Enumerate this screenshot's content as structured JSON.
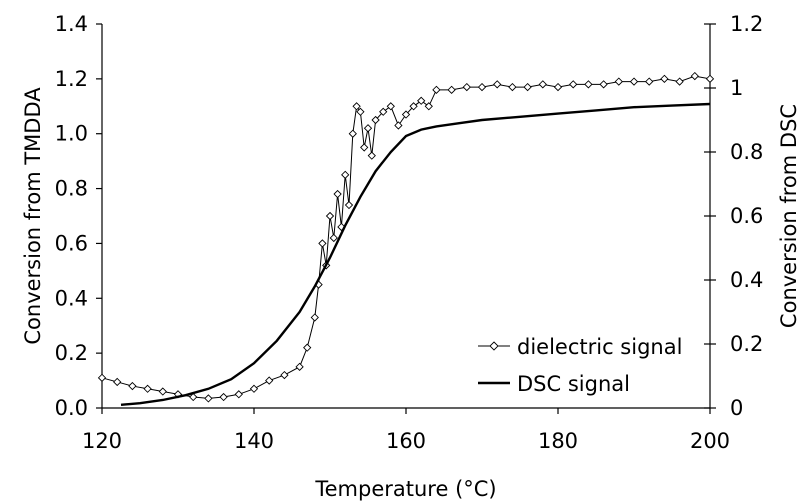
{
  "chart_data": {
    "type": "line",
    "xlabel": "Temperature (°C)",
    "ylabel_left": "Conversion from TMDDA",
    "ylabel_right": "Conversion from DSC",
    "xlim": [
      120,
      200
    ],
    "ylim_left": [
      0,
      1.4
    ],
    "ylim_right": [
      0,
      1.2
    ],
    "xticks": [
      120,
      140,
      160,
      180,
      200
    ],
    "xtick_labels": [
      "120",
      "140",
      "160",
      "180",
      "200"
    ],
    "yticks_left": [
      0,
      0.2,
      0.4,
      0.6,
      0.8,
      1.0,
      1.2,
      1.4
    ],
    "ytick_labels_left": [
      "0.0",
      "0.2",
      "0.4",
      "0.6",
      "0.8",
      "1.0",
      "1.2",
      "1.4"
    ],
    "yticks_right": [
      0,
      0.2,
      0.4,
      0.6,
      0.8,
      1,
      1.2
    ],
    "ytick_labels_right": [
      "0",
      "0.2",
      "0.4",
      "0.6",
      "0.8",
      "1",
      "1.2"
    ],
    "legend": [
      "dielectric signal",
      "DSC signal"
    ],
    "legend_position": "bottom-right",
    "grid": false,
    "series": [
      {
        "name": "dielectric signal",
        "axis": "left",
        "marker": "open-diamond",
        "x": [
          120,
          122,
          124,
          126,
          128,
          130,
          132,
          134,
          136,
          138,
          140,
          142,
          144,
          146,
          147,
          148,
          148.5,
          149,
          149.5,
          150,
          150.5,
          151,
          151.5,
          152,
          152.5,
          153,
          153.5,
          154,
          154.5,
          155,
          155.5,
          156,
          157,
          158,
          159,
          160,
          161,
          162,
          163,
          164,
          166,
          168,
          170,
          172,
          174,
          176,
          178,
          180,
          182,
          184,
          186,
          188,
          190,
          192,
          194,
          196,
          198,
          200
        ],
        "y": [
          0.11,
          0.095,
          0.08,
          0.07,
          0.06,
          0.05,
          0.04,
          0.035,
          0.04,
          0.05,
          0.07,
          0.1,
          0.12,
          0.15,
          0.22,
          0.33,
          0.45,
          0.6,
          0.52,
          0.7,
          0.62,
          0.78,
          0.66,
          0.85,
          0.74,
          1.0,
          1.1,
          1.08,
          0.95,
          1.02,
          0.92,
          1.05,
          1.08,
          1.1,
          1.03,
          1.07,
          1.1,
          1.12,
          1.1,
          1.16,
          1.16,
          1.17,
          1.17,
          1.18,
          1.17,
          1.17,
          1.18,
          1.17,
          1.18,
          1.18,
          1.18,
          1.19,
          1.19,
          1.19,
          1.2,
          1.19,
          1.21,
          1.2
        ]
      },
      {
        "name": "DSC signal",
        "axis": "right",
        "marker": "none",
        "x": [
          122.5,
          125,
          128,
          131,
          134,
          137,
          140,
          143,
          146,
          148,
          150,
          152,
          154,
          156,
          158,
          160,
          162,
          164,
          167,
          170,
          175,
          180,
          185,
          190,
          195,
          200
        ],
        "y": [
          0.01,
          0.015,
          0.025,
          0.04,
          0.06,
          0.09,
          0.14,
          0.21,
          0.3,
          0.38,
          0.47,
          0.57,
          0.66,
          0.74,
          0.8,
          0.85,
          0.87,
          0.88,
          0.89,
          0.9,
          0.91,
          0.92,
          0.93,
          0.94,
          0.945,
          0.95
        ]
      }
    ]
  }
}
